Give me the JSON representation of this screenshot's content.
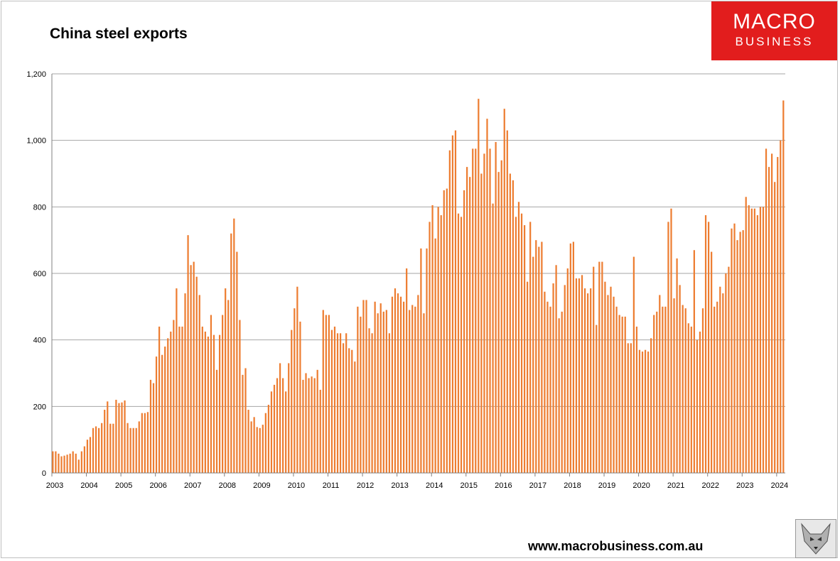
{
  "title": "China steel exports",
  "logo": {
    "line1": "MACRO",
    "line2": "BUSINESS",
    "color": "#e21d1d",
    "icon": "fox-icon"
  },
  "website": "www.macrobusiness.com.au",
  "chart_data": {
    "type": "bar",
    "title": "China steel exports",
    "xlabel": "",
    "ylabel": "",
    "ylim": [
      0,
      1200
    ],
    "y_ticks": [
      "0",
      "200",
      "400",
      "600",
      "800",
      "1,000",
      "1,200"
    ],
    "x_ticks": [
      "2003",
      "2004",
      "2005",
      "2006",
      "2007",
      "2008",
      "2009",
      "2010",
      "2011",
      "2012",
      "2013",
      "2014",
      "2015",
      "2016",
      "2017",
      "2018",
      "2019",
      "2020",
      "2021",
      "2022",
      "2023",
      "2024"
    ],
    "start": "2003-01",
    "frequency": "monthly",
    "bar_color": "#ed7d31",
    "grid": true,
    "values": [
      65,
      65,
      58,
      50,
      52,
      55,
      58,
      65,
      58,
      40,
      65,
      80,
      100,
      108,
      135,
      140,
      135,
      150,
      190,
      215,
      148,
      148,
      220,
      210,
      212,
      218,
      150,
      135,
      135,
      135,
      155,
      180,
      180,
      183,
      280,
      270,
      350,
      440,
      355,
      380,
      405,
      425,
      460,
      555,
      440,
      440,
      540,
      715,
      625,
      635,
      590,
      535,
      440,
      425,
      410,
      475,
      415,
      310,
      415,
      475,
      555,
      520,
      720,
      765,
      665,
      460,
      295,
      315,
      190,
      155,
      168,
      138,
      135,
      145,
      180,
      205,
      245,
      265,
      285,
      330,
      285,
      245,
      330,
      430,
      495,
      560,
      455,
      280,
      300,
      285,
      290,
      285,
      310,
      250,
      490,
      475,
      475,
      430,
      440,
      420,
      420,
      390,
      420,
      375,
      370,
      335,
      500,
      470,
      520,
      520,
      435,
      420,
      515,
      480,
      510,
      485,
      490,
      420,
      530,
      555,
      540,
      530,
      515,
      615,
      490,
      505,
      500,
      535,
      675,
      480,
      675,
      755,
      805,
      705,
      800,
      775,
      850,
      855,
      970,
      1015,
      1030,
      780,
      770,
      850,
      920,
      890,
      975,
      975,
      1125,
      900,
      960,
      1065,
      975,
      810,
      995,
      905,
      940,
      1095,
      1030,
      900,
      880,
      770,
      815,
      780,
      745,
      575,
      755,
      650,
      700,
      680,
      695,
      545,
      515,
      500,
      570,
      625,
      465,
      485,
      565,
      615,
      690,
      695,
      585,
      585,
      595,
      555,
      540,
      555,
      620,
      445,
      635,
      635,
      575,
      535,
      560,
      530,
      500,
      475,
      470,
      470,
      390,
      390,
      650,
      440,
      370,
      365,
      370,
      365,
      405,
      475,
      485,
      535,
      500,
      500,
      755,
      795,
      525,
      645,
      565,
      505,
      495,
      450,
      440,
      670,
      400,
      425,
      495,
      775,
      755,
      665,
      500,
      515,
      560,
      540,
      600,
      620,
      735,
      750,
      700,
      725,
      730,
      830,
      805,
      795,
      795,
      775,
      800,
      800,
      975,
      920,
      960,
      875,
      950,
      1000,
      1120
    ]
  }
}
